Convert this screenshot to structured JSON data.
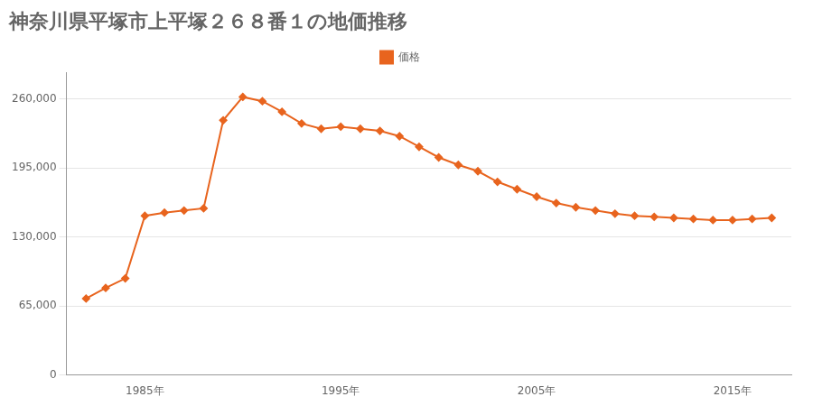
{
  "chart_data": {
    "type": "line",
    "title": "神奈川県平塚市上平塚２６８番１の地価推移",
    "x": [
      1982,
      1983,
      1984,
      1985,
      1986,
      1987,
      1988,
      1989,
      1990,
      1991,
      1992,
      1993,
      1994,
      1995,
      1996,
      1997,
      1998,
      1999,
      2000,
      2001,
      2002,
      2003,
      2004,
      2005,
      2006,
      2007,
      2008,
      2009,
      2010,
      2011,
      2012,
      2013,
      2014,
      2015,
      2016,
      2017
    ],
    "series": [
      {
        "name": "価格",
        "color": "#e8641e",
        "marker": "diamond",
        "line_style": "solid",
        "values": [
          72000,
          82000,
          91000,
          150000,
          153000,
          155000,
          157000,
          240000,
          262000,
          258000,
          248000,
          237000,
          232000,
          234000,
          232000,
          230000,
          225000,
          215000,
          205000,
          198000,
          192000,
          182000,
          175000,
          168000,
          162000,
          158000,
          155000,
          152000,
          150000,
          149000,
          148000,
          147000,
          146000,
          146000,
          147000,
          148000
        ]
      }
    ],
    "xlim": [
      1981,
      2018
    ],
    "xticks": [
      {
        "value": 1985,
        "label": "1985年"
      },
      {
        "value": 1995,
        "label": "1995年"
      },
      {
        "value": 2005,
        "label": "2005年"
      },
      {
        "value": 2015,
        "label": "2015年"
      }
    ],
    "ylim": [
      0,
      285000
    ],
    "yticks": [
      0,
      {
        "value": 65000,
        "label": "65,000"
      },
      {
        "value": 130000,
        "label": "130,000"
      },
      {
        "value": 195000,
        "label": "195,000"
      },
      {
        "value": 260000,
        "label": "260,000"
      }
    ],
    "grid": "y",
    "legend": "top"
  }
}
